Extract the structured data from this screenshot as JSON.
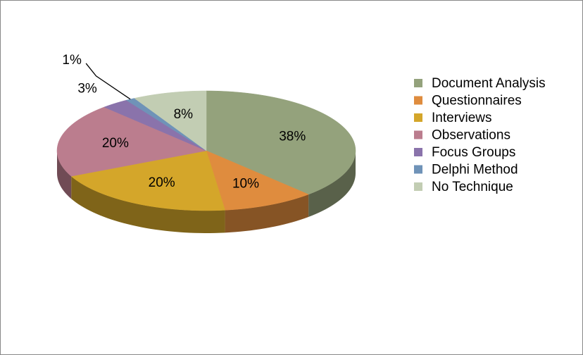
{
  "chart_data": {
    "type": "pie",
    "legend": "right",
    "categories": [
      "Document Analysis",
      "Questionnaires",
      "Interviews",
      "Observations",
      "Focus Groups",
      "Delphi Method",
      "No Technique"
    ],
    "values": [
      38,
      10,
      20,
      20,
      3,
      1,
      8
    ],
    "value_labels": [
      "38%",
      "10%",
      "20%",
      "20%",
      "3%",
      "1%",
      "8%"
    ],
    "colors": [
      "#94a27c",
      "#df8c3e",
      "#d4a62a",
      "#bb7d8e",
      "#8a73ab",
      "#6f93b8",
      "#c2cdb3"
    ]
  }
}
